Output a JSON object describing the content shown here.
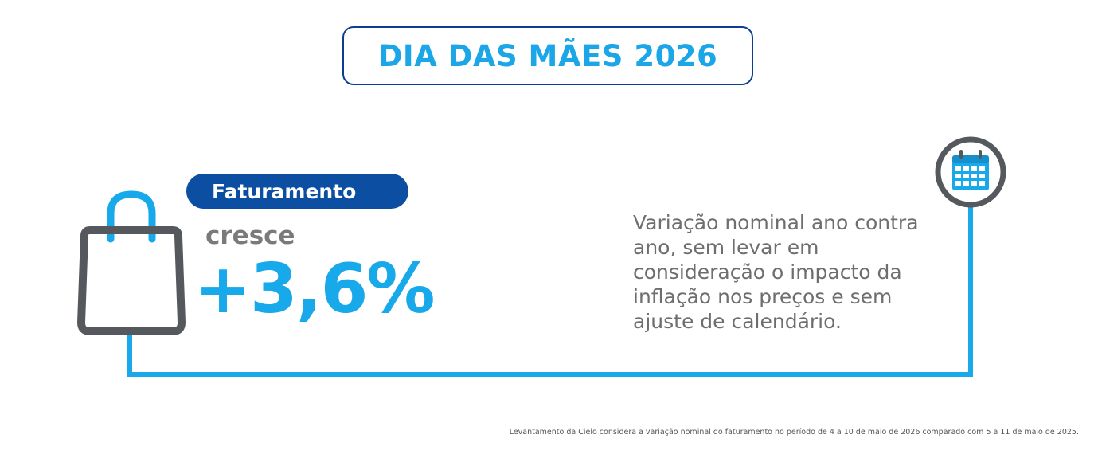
{
  "title": "DIA DAS MÃES 2026",
  "badge_label": "Faturamento",
  "growth_label": "cresce",
  "growth_value": "+3,6%",
  "description": "Variação nominal ano contra ano, sem levar em consideração o impacto da inflação nos preços e sem ajuste de calendário.",
  "footnote": "Levantamento da Cielo considera a variação nominal do faturamento no período de 4 a 10 de maio de 2026 comparado com 5 a 11 de maio de 2025.",
  "icons": [
    "shopping-bag-icon",
    "calendar-icon"
  ],
  "colors": {
    "accent": "#18a9eb",
    "navy": "#0b4ea2",
    "gray": "#55595e",
    "text_gray": "#6e6e6e"
  }
}
